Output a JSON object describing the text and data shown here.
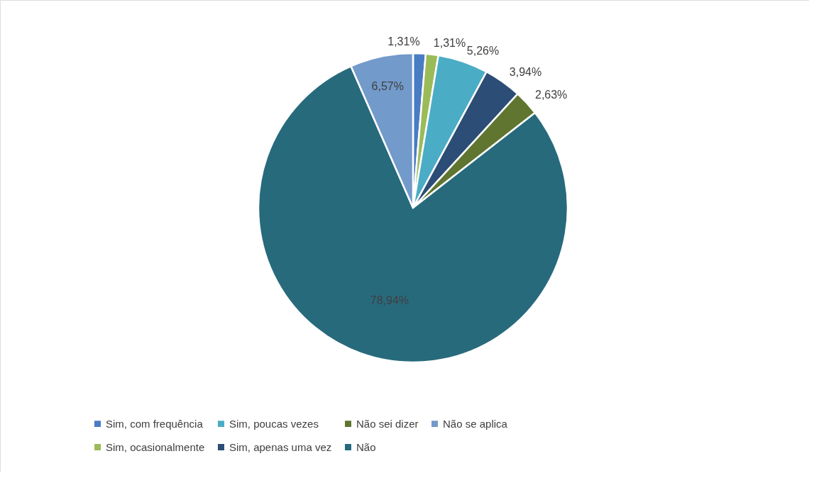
{
  "chart_data": {
    "type": "pie",
    "categories": [
      "Sim, com frequência",
      "Sim, ocasionalmente",
      "Sim, poucas vezes",
      "Sim, apenas uma vez",
      "Não sei dizer",
      "Não",
      "Não se aplica"
    ],
    "values": [
      1.31,
      1.31,
      5.26,
      3.94,
      2.63,
      78.94,
      6.57
    ],
    "value_labels": [
      "1,31%",
      "1,31%",
      "5,26%",
      "3,94%",
      "2,63%",
      "78,94%",
      "6,57%"
    ],
    "colors": [
      "#4a7cc4",
      "#9bbb59",
      "#4bacc6",
      "#2c4d75",
      "#5f7530",
      "#276a7c",
      "#729aca"
    ],
    "legend": "bottom"
  }
}
